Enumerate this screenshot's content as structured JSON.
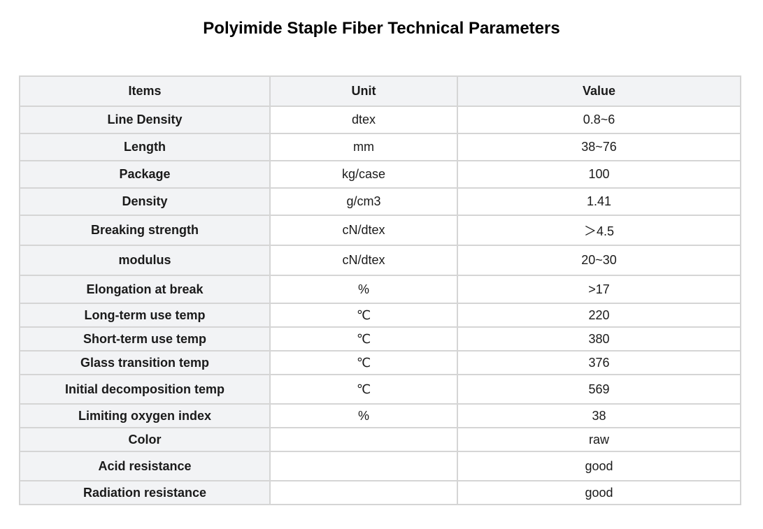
{
  "title": "Polyimide Staple Fiber Technical Parameters",
  "table": {
    "headers": [
      "Items",
      "Unit",
      "Value"
    ],
    "rows": [
      {
        "item": "Line Density",
        "unit": "dtex",
        "value": "0.8~6"
      },
      {
        "item": "Length",
        "unit": "mm",
        "value": "38~76"
      },
      {
        "item": "Package",
        "unit": "kg/case",
        "value": "100"
      },
      {
        "item": "Density",
        "unit": "g/cm3",
        "value": "1.41"
      },
      {
        "item": "Breaking strength",
        "unit": "cN/dtex",
        "value": "＞4.5"
      },
      {
        "item": "modulus",
        "unit": "cN/dtex",
        "value": "20~30"
      },
      {
        "item": "Elongation at break",
        "unit": "%",
        "value": ">17"
      },
      {
        "item": "Long-term use temp",
        "unit": "℃",
        "value": "220"
      },
      {
        "item": "Short-term use temp",
        "unit": "℃",
        "value": "380"
      },
      {
        "item": "Glass transition temp",
        "unit": "℃",
        "value": "376"
      },
      {
        "item": "Initial decomposition temp",
        "unit": "℃",
        "value": "569"
      },
      {
        "item": "Limiting oxygen index",
        "unit": "%",
        "value": "38"
      },
      {
        "item": "Color",
        "unit": "",
        "value": "raw"
      },
      {
        "item": "Acid resistance",
        "unit": "",
        "value": "good"
      },
      {
        "item": "Radiation resistance",
        "unit": "",
        "value": "good"
      }
    ]
  }
}
